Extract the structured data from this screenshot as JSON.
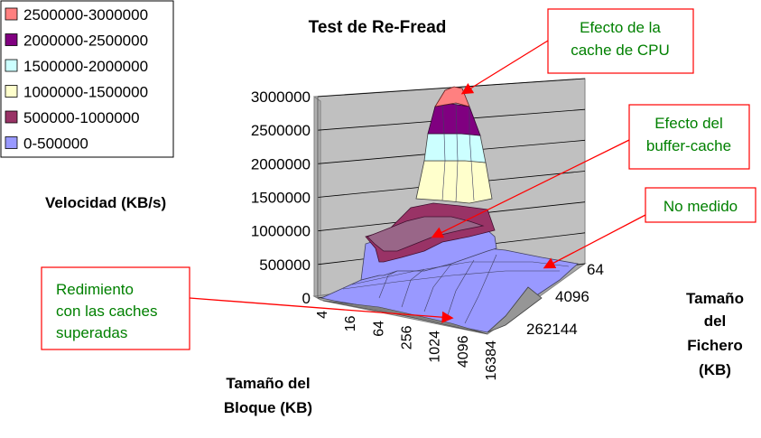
{
  "chart_data": {
    "type": "surface-3d",
    "title": "Test de Re-Fread",
    "zlabel": "Velocidad (KB/s)",
    "xlabel_lines": [
      "Tamaño del",
      "Bloque (KB)"
    ],
    "ylabel_lines": [
      "Tamaño",
      "del",
      "Fichero",
      "(KB)"
    ],
    "x_ticks": [
      "4",
      "16",
      "64",
      "256",
      "1024",
      "4096",
      "16384"
    ],
    "y_ticks": [
      "64",
      "4096",
      "262144"
    ],
    "z_ticks": [
      "0",
      "500000",
      "1000000",
      "1500000",
      "2000000",
      "2500000",
      "3000000"
    ],
    "zlim": [
      0,
      3000000
    ],
    "legend": [
      {
        "label": "2500000-3000000",
        "color": "#ff8080"
      },
      {
        "label": "2000000-2500000",
        "color": "#800080"
      },
      {
        "label": "1500000-2000000",
        "color": "#ccffff"
      },
      {
        "label": "1000000-1500000",
        "color": "#ffffcc"
      },
      {
        "label": "500000-1000000",
        "color": "#993366"
      },
      {
        "label": "0-500000",
        "color": "#9999ff"
      }
    ],
    "annotations": [
      {
        "name": "annot-cpu-cache",
        "lines": [
          "Efecto de la",
          "cache de CPU"
        ]
      },
      {
        "name": "annot-buffer-cache",
        "lines": [
          "Efecto del",
          "buffer-cache"
        ]
      },
      {
        "name": "annot-not-measured",
        "lines": [
          "No medido"
        ]
      },
      {
        "name": "annot-caches-exceeded",
        "lines": [
          "Redimiento",
          "con las caches",
          "superadas"
        ]
      }
    ]
  },
  "colors": {
    "wall": "#c0c0c0",
    "annotation_text": "#008000",
    "annotation_border": "#ff0000",
    "arrow": "#ff0000"
  }
}
